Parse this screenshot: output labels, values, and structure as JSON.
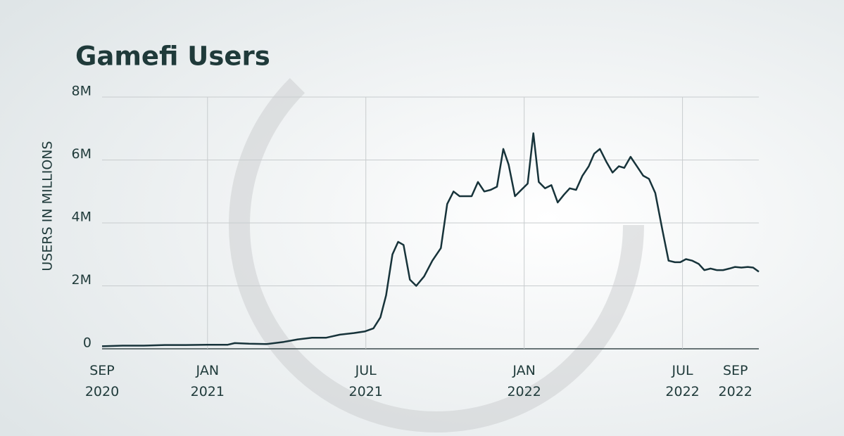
{
  "chart_data": {
    "type": "line",
    "title": "Gamefi Users",
    "y_label": "USERS IN MILLIONS",
    "x": [
      2020.667,
      2020.732,
      2020.799,
      2020.865,
      2020.931,
      2020.998,
      2021.064,
      2021.086,
      2021.131,
      2021.186,
      2021.241,
      2021.285,
      2021.33,
      2021.374,
      2021.418,
      2021.462,
      2021.496,
      2021.524,
      2021.546,
      2021.564,
      2021.584,
      2021.602,
      2021.619,
      2021.639,
      2021.659,
      2021.684,
      2021.71,
      2021.737,
      2021.757,
      2021.777,
      2021.796,
      2021.816,
      2021.834,
      2021.854,
      2021.874,
      2021.894,
      2021.914,
      2021.934,
      2021.951,
      2021.971,
      2021.991,
      2022.011,
      2022.029,
      2022.046,
      2022.066,
      2022.086,
      2022.106,
      2022.126,
      2022.144,
      2022.164,
      2022.184,
      2022.204,
      2022.221,
      2022.239,
      2022.259,
      2022.279,
      2022.299,
      2022.316,
      2022.336,
      2022.356,
      2022.376,
      2022.394,
      2022.414,
      2022.436,
      2022.456,
      2022.476,
      2022.493,
      2022.511,
      2022.531,
      2022.551,
      2022.569,
      2022.589,
      2022.608,
      2022.628,
      2022.648,
      2022.666,
      2022.686,
      2022.706,
      2022.723,
      2022.741
    ],
    "series": [
      {
        "name": "Gamefi Users",
        "color": "#17333a",
        "values": [
          80000,
          100000,
          100000,
          120000,
          120000,
          130000,
          130000,
          180000,
          160000,
          150000,
          220000,
          300000,
          350000,
          350000,
          450000,
          500000,
          550000,
          650000,
          1000000,
          1700000,
          3000000,
          3400000,
          3300000,
          2200000,
          2000000,
          2300000,
          2800000,
          3200000,
          4600000,
          5000000,
          4850000,
          4850000,
          4850000,
          5300000,
          5000000,
          5050000,
          5150000,
          6350000,
          5850000,
          4850000,
          5050000,
          5250000,
          6850000,
          5300000,
          5100000,
          5200000,
          4650000,
          4900000,
          5100000,
          5050000,
          5500000,
          5800000,
          6200000,
          6350000,
          5950000,
          5600000,
          5800000,
          5750000,
          6100000,
          5800000,
          5500000,
          5400000,
          4950000,
          3800000,
          2800000,
          2750000,
          2750000,
          2850000,
          2800000,
          2700000,
          2500000,
          2550000,
          2500000,
          2500000,
          2550000,
          2600000,
          2580000,
          2600000,
          2580000,
          2450000
        ]
      }
    ],
    "xlim": [
      2020.667,
      2022.741
    ],
    "xticks": [
      {
        "value": 2020.667,
        "label": "SEP 2020"
      },
      {
        "value": 2021,
        "label": "JAN 2021"
      },
      {
        "value": 2021.5,
        "label": "JUL 2021"
      },
      {
        "value": 2022,
        "label": "JAN 2022"
      },
      {
        "value": 2022.5,
        "label": "JUL 2022"
      },
      {
        "value": 2022.667,
        "label": "SEP 2022"
      }
    ],
    "ylim": [
      0,
      8000000
    ],
    "yticks": [
      0,
      {
        "value": 2000000,
        "label": "2M"
      },
      {
        "value": 4000000,
        "label": "4M"
      },
      {
        "value": 6000000,
        "label": "6M"
      },
      {
        "value": 8000000,
        "label": "8M"
      }
    ],
    "grid": true
  }
}
